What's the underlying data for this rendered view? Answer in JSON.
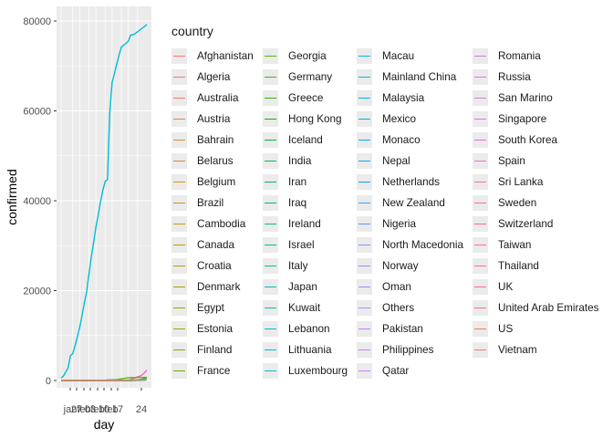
{
  "chart_data": {
    "type": "line",
    "title": "",
    "xlabel": "day",
    "ylabel": "confirmed",
    "ylim": [
      0,
      80000
    ],
    "y_ticks": [
      "0",
      "20000",
      "40000",
      "60000",
      "80000"
    ],
    "x_ticks": [
      "jan",
      "27",
      "feb",
      "03",
      "feb",
      "10",
      "feb",
      "17",
      "24"
    ],
    "legend_title": "country",
    "legend_position": "right",
    "grid": true,
    "x": [
      1,
      2,
      3,
      4,
      5,
      6,
      7,
      8,
      9,
      10,
      11,
      12,
      13,
      14,
      15,
      16,
      17,
      18,
      19,
      20,
      21,
      22,
      23,
      24,
      25,
      26,
      27,
      28,
      29,
      30,
      31,
      32,
      33,
      34,
      35,
      36,
      37,
      38
    ],
    "series": [
      {
        "name": "Mainland China",
        "color": "#00BCD8",
        "values": [
          550,
          1000,
          1900,
          2800,
          5500,
          6000,
          7700,
          9700,
          11800,
          14400,
          17200,
          19700,
          23700,
          27400,
          30600,
          34100,
          36800,
          39800,
          42300,
          44300,
          44700,
          59800,
          66300,
          68300,
          70400,
          72400,
          74200,
          74600,
          75000,
          75500,
          76900,
          76900,
          77200,
          77600,
          78000,
          78400,
          78800,
          79200
        ]
      },
      {
        "name": "South Korea",
        "color": "#FF61C3",
        "values": [
          1,
          1,
          2,
          2,
          3,
          4,
          4,
          4,
          4,
          11,
          12,
          15,
          15,
          16,
          19,
          23,
          24,
          24,
          25,
          27,
          28,
          28,
          28,
          28,
          28,
          29,
          30,
          31,
          51,
          104,
          204,
          433,
          602,
          833,
          977,
          1261,
          1766,
          2337
        ]
      },
      {
        "name": "Italy",
        "color": "#00B81F",
        "values": [
          0,
          0,
          0,
          0,
          0,
          0,
          0,
          0,
          0,
          2,
          2,
          2,
          2,
          2,
          2,
          2,
          3,
          3,
          3,
          3,
          3,
          3,
          3,
          3,
          3,
          3,
          3,
          3,
          3,
          3,
          3,
          20,
          62,
          155,
          229,
          322,
          453,
          655
        ]
      },
      {
        "name": "Others",
        "color": "#5EB400",
        "values": [
          0,
          0,
          0,
          0,
          0,
          0,
          0,
          0,
          0,
          0,
          0,
          0,
          0,
          0,
          0,
          0,
          0,
          61,
          61,
          64,
          135,
          135,
          175,
          175,
          218,
          285,
          355,
          454,
          542,
          621,
          634,
          634,
          634,
          691,
          691,
          691,
          705,
          705
        ]
      },
      {
        "name": "Iran",
        "color": "#00C1A3",
        "values": [
          0,
          0,
          0,
          0,
          0,
          0,
          0,
          0,
          0,
          0,
          0,
          0,
          0,
          0,
          0,
          0,
          0,
          0,
          0,
          0,
          0,
          0,
          0,
          0,
          0,
          0,
          0,
          0,
          0,
          0,
          2,
          5,
          18,
          28,
          43,
          61,
          95,
          141
        ]
      },
      {
        "name": "Japan",
        "color": "#F8766D",
        "values": [
          2,
          1,
          2,
          2,
          4,
          4,
          7,
          7,
          11,
          15,
          20,
          20,
          20,
          22,
          22,
          45,
          25,
          25,
          26,
          26,
          26,
          28,
          28,
          29,
          43,
          59,
          66,
          74,
          84,
          94,
          105,
          122,
          147,
          159,
          170,
          189,
          214,
          228
        ]
      }
    ]
  },
  "legend": {
    "columns": [
      [
        {
          "label": "Afghanistan",
          "color": "#F8766D"
        },
        {
          "label": "Algeria",
          "color": "#F47A62"
        },
        {
          "label": "Australia",
          "color": "#EF7F56"
        },
        {
          "label": "Austria",
          "color": "#E9844A"
        },
        {
          "label": "Bahrain",
          "color": "#E3893D"
        },
        {
          "label": "Belarus",
          "color": "#DC8D30"
        },
        {
          "label": "Belgium",
          "color": "#D59123"
        },
        {
          "label": "Brazil",
          "color": "#CD9516"
        },
        {
          "label": "Cambodia",
          "color": "#C4990B"
        },
        {
          "label": "Canada",
          "color": "#BB9D00"
        },
        {
          "label": "Croatia",
          "color": "#B1A100"
        },
        {
          "label": "Denmark",
          "color": "#A6A400"
        },
        {
          "label": "Egypt",
          "color": "#9AA800"
        },
        {
          "label": "Estonia",
          "color": "#8DAB00"
        },
        {
          "label": "Finland",
          "color": "#7FAE00"
        },
        {
          "label": "France",
          "color": "#6FB100"
        }
      ],
      [
        {
          "label": "Georgia",
          "color": "#5EB400"
        },
        {
          "label": "Germany",
          "color": "#49B600"
        },
        {
          "label": "Greece",
          "color": "#2EB800"
        },
        {
          "label": "Hong Kong",
          "color": "#00B81F"
        },
        {
          "label": "Iceland",
          "color": "#00BA38"
        },
        {
          "label": "India",
          "color": "#00BB4E"
        },
        {
          "label": "Iran",
          "color": "#00BC61"
        },
        {
          "label": "Iraq",
          "color": "#00BD72"
        },
        {
          "label": "Ireland",
          "color": "#00BE82"
        },
        {
          "label": "Israel",
          "color": "#00BF91"
        },
        {
          "label": "Italy",
          "color": "#00C09F"
        },
        {
          "label": "Japan",
          "color": "#00C0AC"
        },
        {
          "label": "Kuwait",
          "color": "#00C0B8"
        },
        {
          "label": "Lebanon",
          "color": "#00C0C4"
        },
        {
          "label": "Lithuania",
          "color": "#00BFCF"
        },
        {
          "label": "Luxembourg",
          "color": "#00BED9"
        }
      ],
      [
        {
          "label": "Macau",
          "color": "#00BCD8"
        },
        {
          "label": "Mainland China",
          "color": "#00BAE3"
        },
        {
          "label": "Malaysia",
          "color": "#00B7EC"
        },
        {
          "label": "Mexico",
          "color": "#00B4F0"
        },
        {
          "label": "Monaco",
          "color": "#00B0F6"
        },
        {
          "label": "Nepal",
          "color": "#00ACFC"
        },
        {
          "label": "Netherlands",
          "color": "#00A7FF"
        },
        {
          "label": "New Zealand",
          "color": "#35A2FF"
        },
        {
          "label": "Nigeria",
          "color": "#619CFF"
        },
        {
          "label": "North Macedonia",
          "color": "#7B96FF"
        },
        {
          "label": "Norway",
          "color": "#8F91FF"
        },
        {
          "label": "Oman",
          "color": "#A08BFF"
        },
        {
          "label": "Others",
          "color": "#AE87FF"
        },
        {
          "label": "Pakistan",
          "color": "#BB81FF"
        },
        {
          "label": "Philippines",
          "color": "#C67CFF"
        },
        {
          "label": "Qatar",
          "color": "#D078FF"
        }
      ],
      [
        {
          "label": "Romania",
          "color": "#D974F6"
        },
        {
          "label": "Russia",
          "color": "#E170EE"
        },
        {
          "label": "San Marino",
          "color": "#E86DE6"
        },
        {
          "label": "Singapore",
          "color": "#EE6BDD"
        },
        {
          "label": "South Korea",
          "color": "#F36AD3"
        },
        {
          "label": "Spain",
          "color": "#F769C9"
        },
        {
          "label": "Sri Lanka",
          "color": "#FA68BE"
        },
        {
          "label": "Sweden",
          "color": "#FC68B2"
        },
        {
          "label": "Switzerland",
          "color": "#FD69A6"
        },
        {
          "label": "Taiwan",
          "color": "#FE6A99"
        },
        {
          "label": "Thailand",
          "color": "#FE6C8C"
        },
        {
          "label": "UK",
          "color": "#FE6E7F"
        },
        {
          "label": "United Arab Emirates",
          "color": "#FC7173"
        },
        {
          "label": "US",
          "color": "#FA7468"
        },
        {
          "label": "Vietnam",
          "color": "#F8766D"
        }
      ]
    ]
  }
}
